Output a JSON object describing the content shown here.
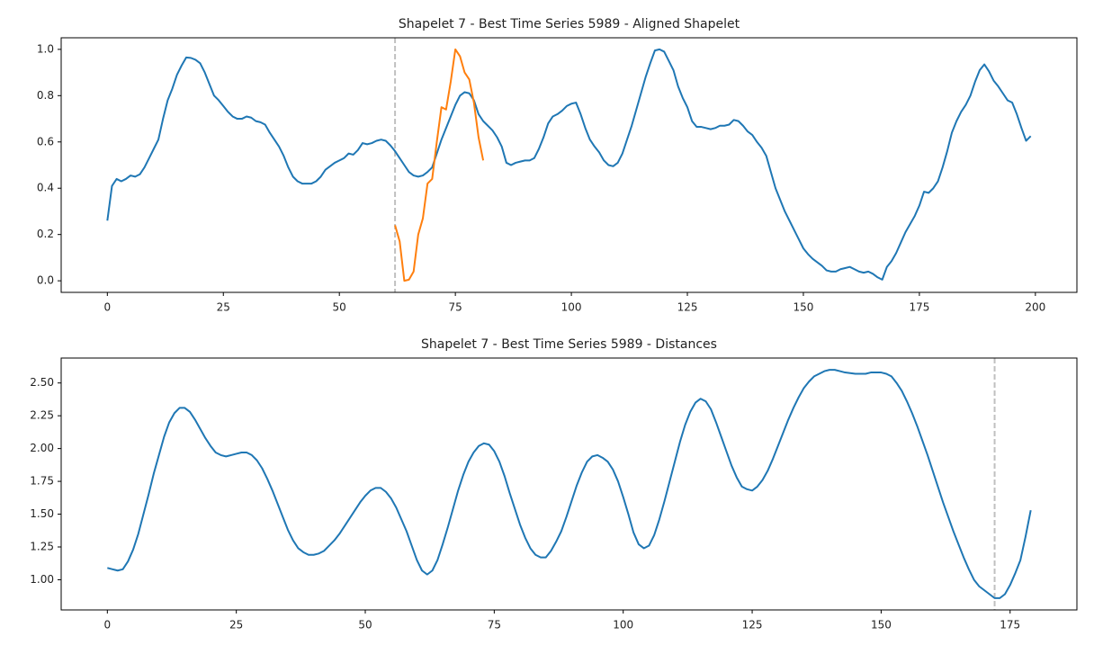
{
  "chart_data": [
    {
      "type": "line",
      "title": "Shapelet 7 - Best Time Series 5989 - Aligned Shapelet",
      "xlim": [
        -9.95,
        208.95
      ],
      "xticks": [
        0,
        25,
        50,
        75,
        100,
        125,
        150,
        175,
        200
      ],
      "ylim": [
        -0.05,
        1.05
      ],
      "yticks": [
        {
          "value": 0,
          "label": "0.0"
        },
        {
          "value": 0.2,
          "label": "0.2"
        },
        {
          "value": 0.4,
          "label": "0.4"
        },
        {
          "value": 0.6,
          "label": "0.6"
        },
        {
          "value": 0.8,
          "label": "0.8"
        },
        {
          "value": 1,
          "label": "1.0"
        }
      ],
      "vline": 62,
      "vline_color": "#c0c0c0",
      "series": [
        {
          "color": "#1f77b4",
          "values": [
            0.26,
            0.41,
            0.44,
            0.43,
            0.44,
            0.455,
            0.45,
            0.46,
            0.49,
            0.53,
            0.57,
            0.61,
            0.7,
            0.78,
            0.83,
            0.89,
            0.93,
            0.965,
            0.963,
            0.955,
            0.94,
            0.9,
            0.85,
            0.8,
            0.78,
            0.755,
            0.73,
            0.71,
            0.7,
            0.7,
            0.71,
            0.705,
            0.69,
            0.685,
            0.675,
            0.64,
            0.61,
            0.58,
            0.54,
            0.49,
            0.45,
            0.43,
            0.42,
            0.42,
            0.42,
            0.43,
            0.45,
            0.48,
            0.495,
            0.51,
            0.52,
            0.53,
            0.55,
            0.545,
            0.565,
            0.595,
            0.59,
            0.595,
            0.605,
            0.61,
            0.605,
            0.585,
            0.56,
            0.53,
            0.5,
            0.47,
            0.455,
            0.45,
            0.455,
            0.47,
            0.49,
            0.55,
            0.61,
            0.66,
            0.71,
            0.76,
            0.8,
            0.815,
            0.81,
            0.78,
            0.72,
            0.69,
            0.67,
            0.65,
            0.62,
            0.58,
            0.51,
            0.5,
            0.51,
            0.515,
            0.52,
            0.52,
            0.53,
            0.57,
            0.62,
            0.68,
            0.71,
            0.72,
            0.735,
            0.755,
            0.765,
            0.77,
            0.72,
            0.66,
            0.61,
            0.58,
            0.555,
            0.52,
            0.5,
            0.495,
            0.51,
            0.55,
            0.61,
            0.67,
            0.74,
            0.81,
            0.88,
            0.94,
            0.995,
            1.0,
            0.99,
            0.95,
            0.91,
            0.84,
            0.79,
            0.75,
            0.69,
            0.665,
            0.665,
            0.66,
            0.655,
            0.66,
            0.67,
            0.67,
            0.675,
            0.695,
            0.69,
            0.67,
            0.645,
            0.63,
            0.6,
            0.575,
            0.54,
            0.47,
            0.4,
            0.35,
            0.3,
            0.26,
            0.22,
            0.18,
            0.14,
            0.115,
            0.095,
            0.08,
            0.065,
            0.045,
            0.04,
            0.04,
            0.05,
            0.055,
            0.06,
            0.05,
            0.04,
            0.035,
            0.04,
            0.03,
            0.015,
            0.005,
            0.06,
            0.085,
            0.12,
            0.165,
            0.21,
            0.245,
            0.28,
            0.325,
            0.385,
            0.38,
            0.4,
            0.43,
            0.49,
            0.56,
            0.64,
            0.69,
            0.73,
            0.76,
            0.8,
            0.86,
            0.91,
            0.935,
            0.905,
            0.865,
            0.84,
            0.81,
            0.78,
            0.77,
            0.72,
            0.66,
            0.605,
            0.625
          ]
        },
        {
          "color": "#ff7f0e",
          "x": [
            62,
            63,
            64,
            65,
            66,
            67,
            68,
            69,
            70,
            71,
            72,
            73,
            74,
            75,
            76,
            77,
            78,
            79,
            80,
            81
          ],
          "values": [
            0.24,
            0.17,
            0.0,
            0.005,
            0.04,
            0.2,
            0.27,
            0.42,
            0.44,
            0.6,
            0.75,
            0.74,
            0.86,
            1.0,
            0.97,
            0.9,
            0.87,
            0.77,
            0.62,
            0.52
          ]
        }
      ]
    },
    {
      "type": "line",
      "title": "Shapelet 7 - Best Time Series 5989 - Distances",
      "xlim": [
        -8.95,
        187.95
      ],
      "xticks": [
        0,
        25,
        50,
        75,
        100,
        125,
        150,
        175
      ],
      "ylim": [
        0.77,
        2.69
      ],
      "yticks": [
        {
          "value": 1,
          "label": "1.00"
        },
        {
          "value": 1.25,
          "label": "1.25"
        },
        {
          "value": 1.5,
          "label": "1.50"
        },
        {
          "value": 1.75,
          "label": "1.75"
        },
        {
          "value": 2,
          "label": "2.00"
        },
        {
          "value": 2.25,
          "label": "2.25"
        },
        {
          "value": 2.5,
          "label": "2.50"
        }
      ],
      "vline": 172,
      "vline_color": "#c0c0c0",
      "series": [
        {
          "color": "#1f77b4",
          "values": [
            1.09,
            1.08,
            1.07,
            1.08,
            1.14,
            1.23,
            1.35,
            1.5,
            1.65,
            1.81,
            1.95,
            2.09,
            2.2,
            2.27,
            2.31,
            2.31,
            2.28,
            2.22,
            2.15,
            2.08,
            2.02,
            1.97,
            1.95,
            1.94,
            1.95,
            1.96,
            1.97,
            1.97,
            1.95,
            1.91,
            1.85,
            1.77,
            1.68,
            1.58,
            1.48,
            1.38,
            1.3,
            1.24,
            1.21,
            1.19,
            1.19,
            1.2,
            1.22,
            1.26,
            1.3,
            1.35,
            1.41,
            1.47,
            1.53,
            1.59,
            1.64,
            1.68,
            1.7,
            1.7,
            1.67,
            1.62,
            1.55,
            1.46,
            1.37,
            1.26,
            1.15,
            1.07,
            1.04,
            1.07,
            1.15,
            1.27,
            1.4,
            1.54,
            1.68,
            1.8,
            1.9,
            1.97,
            2.02,
            2.04,
            2.03,
            1.98,
            1.9,
            1.79,
            1.66,
            1.54,
            1.42,
            1.32,
            1.24,
            1.19,
            1.17,
            1.17,
            1.22,
            1.29,
            1.37,
            1.48,
            1.6,
            1.72,
            1.82,
            1.9,
            1.94,
            1.95,
            1.93,
            1.9,
            1.84,
            1.75,
            1.63,
            1.5,
            1.36,
            1.27,
            1.24,
            1.26,
            1.34,
            1.46,
            1.6,
            1.75,
            1.9,
            2.05,
            2.18,
            2.28,
            2.35,
            2.38,
            2.36,
            2.3,
            2.2,
            2.09,
            1.98,
            1.87,
            1.78,
            1.71,
            1.69,
            1.68,
            1.71,
            1.76,
            1.83,
            1.92,
            2.02,
            2.12,
            2.22,
            2.31,
            2.39,
            2.46,
            2.51,
            2.55,
            2.57,
            2.59,
            2.6,
            2.6,
            2.59,
            2.58,
            2.575,
            2.57,
            2.57,
            2.57,
            2.58,
            2.58,
            2.58,
            2.57,
            2.55,
            2.5,
            2.44,
            2.36,
            2.27,
            2.17,
            2.06,
            1.95,
            1.83,
            1.71,
            1.59,
            1.48,
            1.37,
            1.27,
            1.17,
            1.08,
            1.0,
            0.95,
            0.92,
            0.89,
            0.86,
            0.86,
            0.89,
            0.96,
            1.05,
            1.15,
            1.33,
            1.53
          ]
        }
      ]
    }
  ]
}
